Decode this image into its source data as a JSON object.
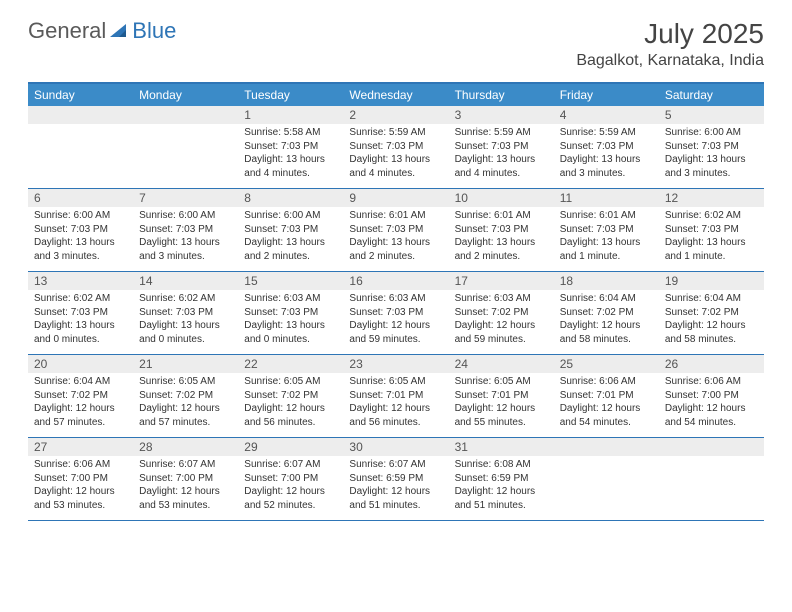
{
  "brand": {
    "part1": "General",
    "part2": "Blue"
  },
  "title": "July 2025",
  "location": "Bagalkot, Karnataka, India",
  "colors": {
    "accent": "#2e75b6",
    "header_bg": "#3b8bc8",
    "daynum_bg": "#ededed",
    "text": "#333333",
    "title_text": "#444444"
  },
  "day_headers": [
    "Sunday",
    "Monday",
    "Tuesday",
    "Wednesday",
    "Thursday",
    "Friday",
    "Saturday"
  ],
  "weeks": [
    [
      {
        "n": "",
        "sr": "",
        "ss": "",
        "dl": ""
      },
      {
        "n": "",
        "sr": "",
        "ss": "",
        "dl": ""
      },
      {
        "n": "1",
        "sr": "Sunrise: 5:58 AM",
        "ss": "Sunset: 7:03 PM",
        "dl": "Daylight: 13 hours and 4 minutes."
      },
      {
        "n": "2",
        "sr": "Sunrise: 5:59 AM",
        "ss": "Sunset: 7:03 PM",
        "dl": "Daylight: 13 hours and 4 minutes."
      },
      {
        "n": "3",
        "sr": "Sunrise: 5:59 AM",
        "ss": "Sunset: 7:03 PM",
        "dl": "Daylight: 13 hours and 4 minutes."
      },
      {
        "n": "4",
        "sr": "Sunrise: 5:59 AM",
        "ss": "Sunset: 7:03 PM",
        "dl": "Daylight: 13 hours and 3 minutes."
      },
      {
        "n": "5",
        "sr": "Sunrise: 6:00 AM",
        "ss": "Sunset: 7:03 PM",
        "dl": "Daylight: 13 hours and 3 minutes."
      }
    ],
    [
      {
        "n": "6",
        "sr": "Sunrise: 6:00 AM",
        "ss": "Sunset: 7:03 PM",
        "dl": "Daylight: 13 hours and 3 minutes."
      },
      {
        "n": "7",
        "sr": "Sunrise: 6:00 AM",
        "ss": "Sunset: 7:03 PM",
        "dl": "Daylight: 13 hours and 3 minutes."
      },
      {
        "n": "8",
        "sr": "Sunrise: 6:00 AM",
        "ss": "Sunset: 7:03 PM",
        "dl": "Daylight: 13 hours and 2 minutes."
      },
      {
        "n": "9",
        "sr": "Sunrise: 6:01 AM",
        "ss": "Sunset: 7:03 PM",
        "dl": "Daylight: 13 hours and 2 minutes."
      },
      {
        "n": "10",
        "sr": "Sunrise: 6:01 AM",
        "ss": "Sunset: 7:03 PM",
        "dl": "Daylight: 13 hours and 2 minutes."
      },
      {
        "n": "11",
        "sr": "Sunrise: 6:01 AM",
        "ss": "Sunset: 7:03 PM",
        "dl": "Daylight: 13 hours and 1 minute."
      },
      {
        "n": "12",
        "sr": "Sunrise: 6:02 AM",
        "ss": "Sunset: 7:03 PM",
        "dl": "Daylight: 13 hours and 1 minute."
      }
    ],
    [
      {
        "n": "13",
        "sr": "Sunrise: 6:02 AM",
        "ss": "Sunset: 7:03 PM",
        "dl": "Daylight: 13 hours and 0 minutes."
      },
      {
        "n": "14",
        "sr": "Sunrise: 6:02 AM",
        "ss": "Sunset: 7:03 PM",
        "dl": "Daylight: 13 hours and 0 minutes."
      },
      {
        "n": "15",
        "sr": "Sunrise: 6:03 AM",
        "ss": "Sunset: 7:03 PM",
        "dl": "Daylight: 13 hours and 0 minutes."
      },
      {
        "n": "16",
        "sr": "Sunrise: 6:03 AM",
        "ss": "Sunset: 7:03 PM",
        "dl": "Daylight: 12 hours and 59 minutes."
      },
      {
        "n": "17",
        "sr": "Sunrise: 6:03 AM",
        "ss": "Sunset: 7:02 PM",
        "dl": "Daylight: 12 hours and 59 minutes."
      },
      {
        "n": "18",
        "sr": "Sunrise: 6:04 AM",
        "ss": "Sunset: 7:02 PM",
        "dl": "Daylight: 12 hours and 58 minutes."
      },
      {
        "n": "19",
        "sr": "Sunrise: 6:04 AM",
        "ss": "Sunset: 7:02 PM",
        "dl": "Daylight: 12 hours and 58 minutes."
      }
    ],
    [
      {
        "n": "20",
        "sr": "Sunrise: 6:04 AM",
        "ss": "Sunset: 7:02 PM",
        "dl": "Daylight: 12 hours and 57 minutes."
      },
      {
        "n": "21",
        "sr": "Sunrise: 6:05 AM",
        "ss": "Sunset: 7:02 PM",
        "dl": "Daylight: 12 hours and 57 minutes."
      },
      {
        "n": "22",
        "sr": "Sunrise: 6:05 AM",
        "ss": "Sunset: 7:02 PM",
        "dl": "Daylight: 12 hours and 56 minutes."
      },
      {
        "n": "23",
        "sr": "Sunrise: 6:05 AM",
        "ss": "Sunset: 7:01 PM",
        "dl": "Daylight: 12 hours and 56 minutes."
      },
      {
        "n": "24",
        "sr": "Sunrise: 6:05 AM",
        "ss": "Sunset: 7:01 PM",
        "dl": "Daylight: 12 hours and 55 minutes."
      },
      {
        "n": "25",
        "sr": "Sunrise: 6:06 AM",
        "ss": "Sunset: 7:01 PM",
        "dl": "Daylight: 12 hours and 54 minutes."
      },
      {
        "n": "26",
        "sr": "Sunrise: 6:06 AM",
        "ss": "Sunset: 7:00 PM",
        "dl": "Daylight: 12 hours and 54 minutes."
      }
    ],
    [
      {
        "n": "27",
        "sr": "Sunrise: 6:06 AM",
        "ss": "Sunset: 7:00 PM",
        "dl": "Daylight: 12 hours and 53 minutes."
      },
      {
        "n": "28",
        "sr": "Sunrise: 6:07 AM",
        "ss": "Sunset: 7:00 PM",
        "dl": "Daylight: 12 hours and 53 minutes."
      },
      {
        "n": "29",
        "sr": "Sunrise: 6:07 AM",
        "ss": "Sunset: 7:00 PM",
        "dl": "Daylight: 12 hours and 52 minutes."
      },
      {
        "n": "30",
        "sr": "Sunrise: 6:07 AM",
        "ss": "Sunset: 6:59 PM",
        "dl": "Daylight: 12 hours and 51 minutes."
      },
      {
        "n": "31",
        "sr": "Sunrise: 6:08 AM",
        "ss": "Sunset: 6:59 PM",
        "dl": "Daylight: 12 hours and 51 minutes."
      },
      {
        "n": "",
        "sr": "",
        "ss": "",
        "dl": ""
      },
      {
        "n": "",
        "sr": "",
        "ss": "",
        "dl": ""
      }
    ]
  ]
}
